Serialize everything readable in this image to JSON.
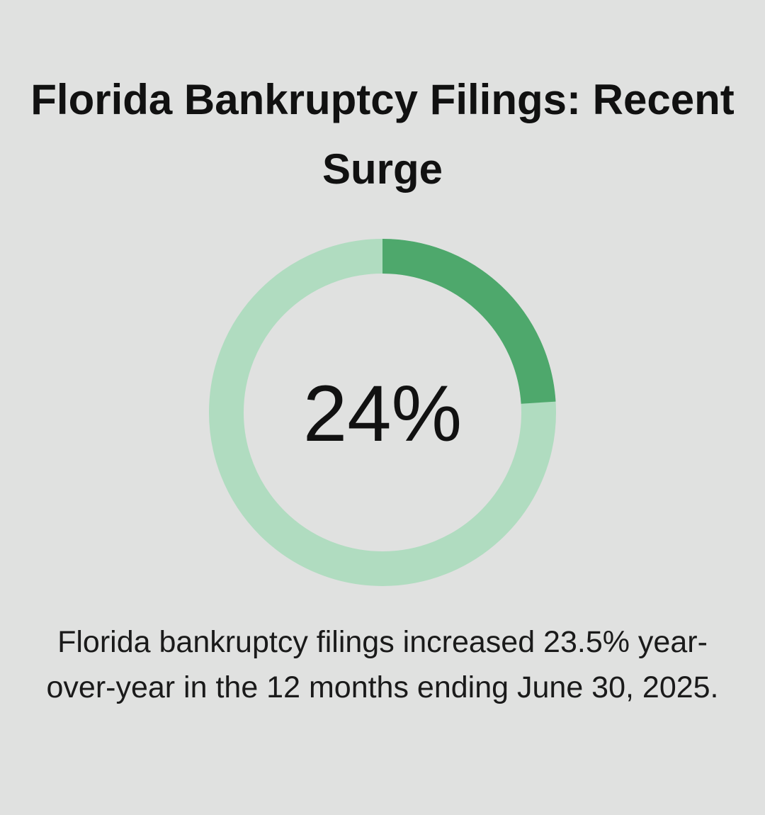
{
  "chart_data": {
    "type": "donut",
    "title": "Florida Bankruptcy Filings: Recent Surge",
    "values": [
      24
    ],
    "value_labels": [
      "24%"
    ],
    "ylim": [
      0,
      100
    ],
    "color": "#4ea86c",
    "track_color": "#b0dcc0",
    "caption": "Florida bankruptcy filings increased 23.5% year-over-year in the 12 months ending June 30, 2025."
  }
}
